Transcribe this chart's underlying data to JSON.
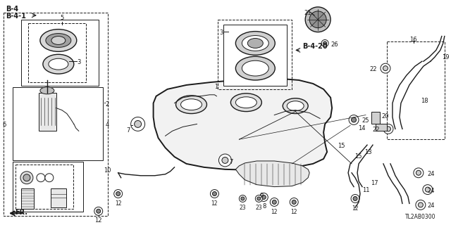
{
  "bg_color": "#ffffff",
  "diagram_color": "#1a1a1a",
  "gray": "#888888",
  "light_gray": "#cccccc",
  "part_number_code": "TL2AB0300",
  "fig_w": 6.4,
  "fig_h": 3.2,
  "dpi": 100
}
